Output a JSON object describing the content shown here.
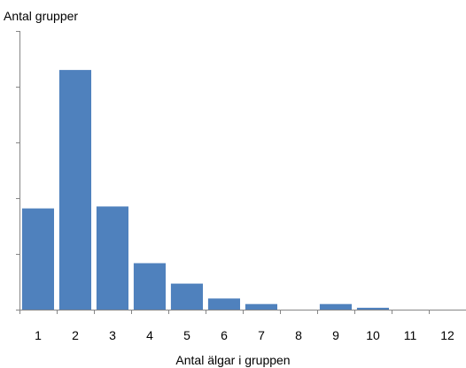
{
  "chart_data": {
    "type": "bar",
    "title": "",
    "ylabel": "Antal grupper",
    "xlabel": "Antal älgar i gruppen",
    "categories": [
      "1",
      "2",
      "3",
      "4",
      "5",
      "6",
      "7",
      "8",
      "9",
      "10",
      "11",
      "12"
    ],
    "values": [
      109,
      258,
      111,
      50,
      28,
      12,
      6,
      0,
      6,
      2,
      0,
      0
    ],
    "ylim": [
      0,
      300
    ],
    "y_tick_count": 5,
    "y_tick_labels_shown": false,
    "grid": false,
    "legend": "none",
    "bar_color": "#4F81BD"
  }
}
